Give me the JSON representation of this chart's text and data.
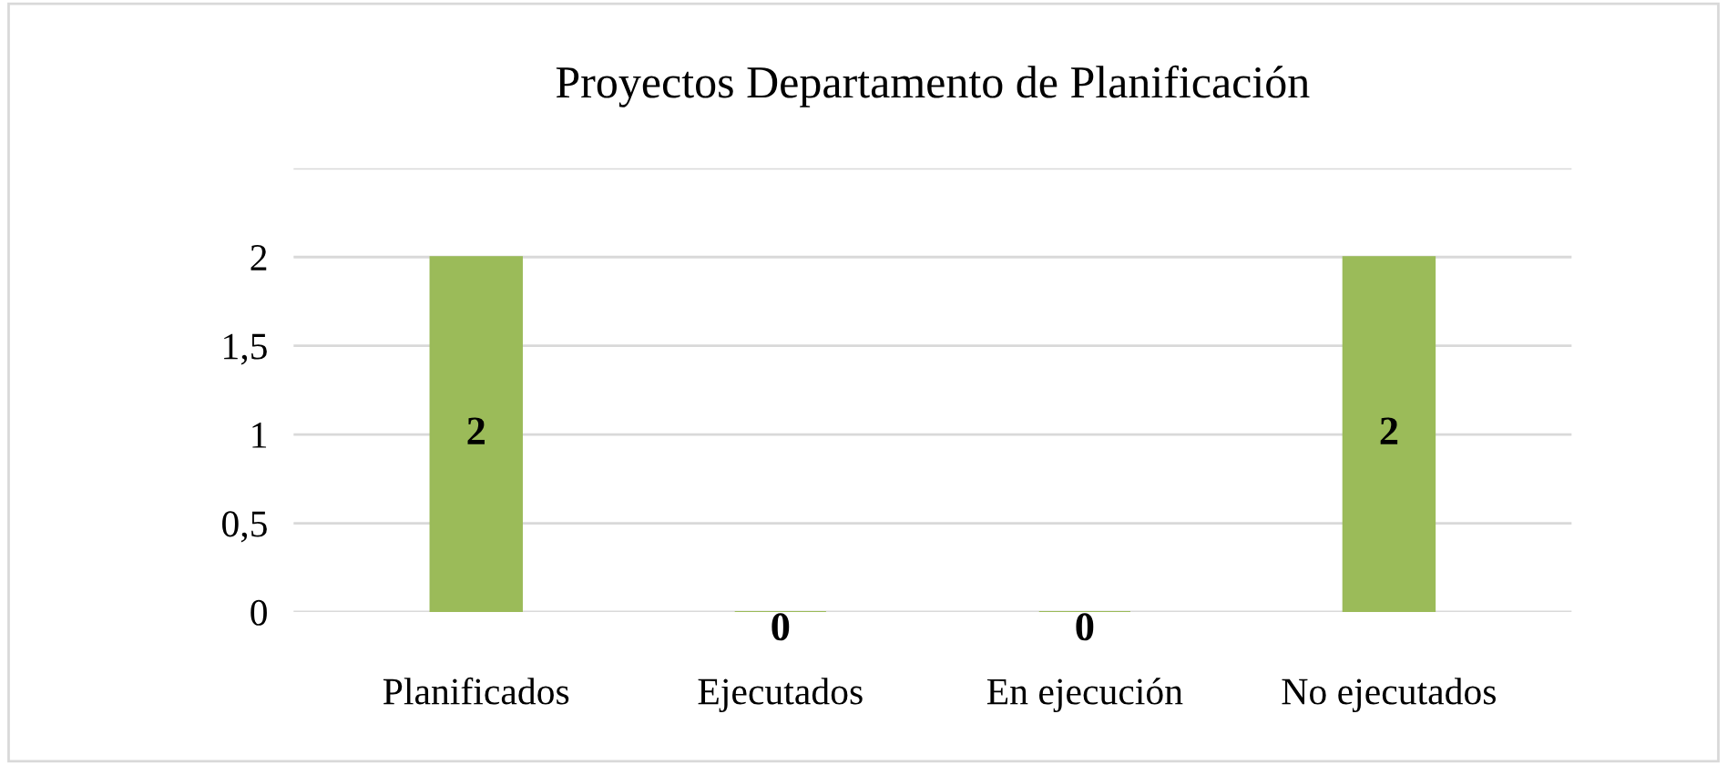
{
  "chart_data": {
    "type": "bar",
    "title": "Proyectos Departamento de Planificación",
    "categories": [
      "Planificados",
      "Ejecutados",
      "En ejecución",
      "No ejecutados"
    ],
    "values": [
      2,
      0,
      0,
      2
    ],
    "color": "#9bbb59",
    "ylim": [
      0,
      2.5
    ],
    "yticks": [
      {
        "value": 0,
        "label": "0"
      },
      {
        "value": 0.5,
        "label": "0,5"
      },
      {
        "value": 1,
        "label": "1"
      },
      {
        "value": 1.5,
        "label": "1,5"
      },
      {
        "value": 2,
        "label": "2"
      },
      {
        "value": 2.5,
        "label": null
      }
    ],
    "grid": "y",
    "data_labels": true
  }
}
